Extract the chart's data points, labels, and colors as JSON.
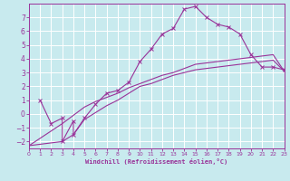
{
  "background_color": "#c8eaee",
  "line_color": "#993399",
  "grid_color": "#ffffff",
  "xlabel": "Windchill (Refroidissement éolien,°C)",
  "xlim": [
    0,
    23
  ],
  "ylim": [
    -2.5,
    8.0
  ],
  "yticks": [
    -2,
    -1,
    0,
    1,
    2,
    3,
    4,
    5,
    6,
    7
  ],
  "xticks": [
    0,
    1,
    2,
    3,
    4,
    5,
    6,
    7,
    8,
    9,
    10,
    11,
    12,
    13,
    14,
    15,
    16,
    17,
    18,
    19,
    20,
    21,
    22,
    23
  ],
  "main_x": [
    1,
    2,
    3,
    3,
    4,
    4,
    5,
    6,
    7,
    8,
    9,
    10,
    11,
    12,
    13,
    14,
    15,
    16,
    17,
    18,
    19,
    20,
    21,
    22,
    23
  ],
  "main_y": [
    1.0,
    -0.7,
    -0.3,
    -2.0,
    -0.5,
    -1.5,
    -0.3,
    0.7,
    1.5,
    1.7,
    2.3,
    3.8,
    4.7,
    5.8,
    6.2,
    7.6,
    7.8,
    7.0,
    6.5,
    6.3,
    5.8,
    4.3,
    3.4,
    3.4,
    3.2
  ],
  "low_x": [
    0,
    3,
    4,
    5,
    6,
    7,
    8,
    9,
    10,
    11,
    12,
    13,
    14,
    15,
    16,
    17,
    18,
    19,
    20,
    21,
    22,
    23
  ],
  "low_y": [
    -2.3,
    -2.0,
    -1.5,
    -0.4,
    0.1,
    0.6,
    1.0,
    1.5,
    2.0,
    2.2,
    2.5,
    2.8,
    3.0,
    3.2,
    3.3,
    3.4,
    3.5,
    3.6,
    3.7,
    3.8,
    3.9,
    3.1
  ],
  "high_x": [
    0,
    3,
    4,
    5,
    6,
    7,
    8,
    9,
    10,
    11,
    12,
    13,
    14,
    15,
    16,
    17,
    18,
    19,
    20,
    21,
    22,
    23
  ],
  "high_y": [
    -2.3,
    -0.7,
    -0.1,
    0.5,
    0.9,
    1.2,
    1.5,
    1.9,
    2.2,
    2.5,
    2.8,
    3.0,
    3.3,
    3.6,
    3.7,
    3.8,
    3.9,
    4.0,
    4.1,
    4.2,
    4.3,
    3.1
  ]
}
